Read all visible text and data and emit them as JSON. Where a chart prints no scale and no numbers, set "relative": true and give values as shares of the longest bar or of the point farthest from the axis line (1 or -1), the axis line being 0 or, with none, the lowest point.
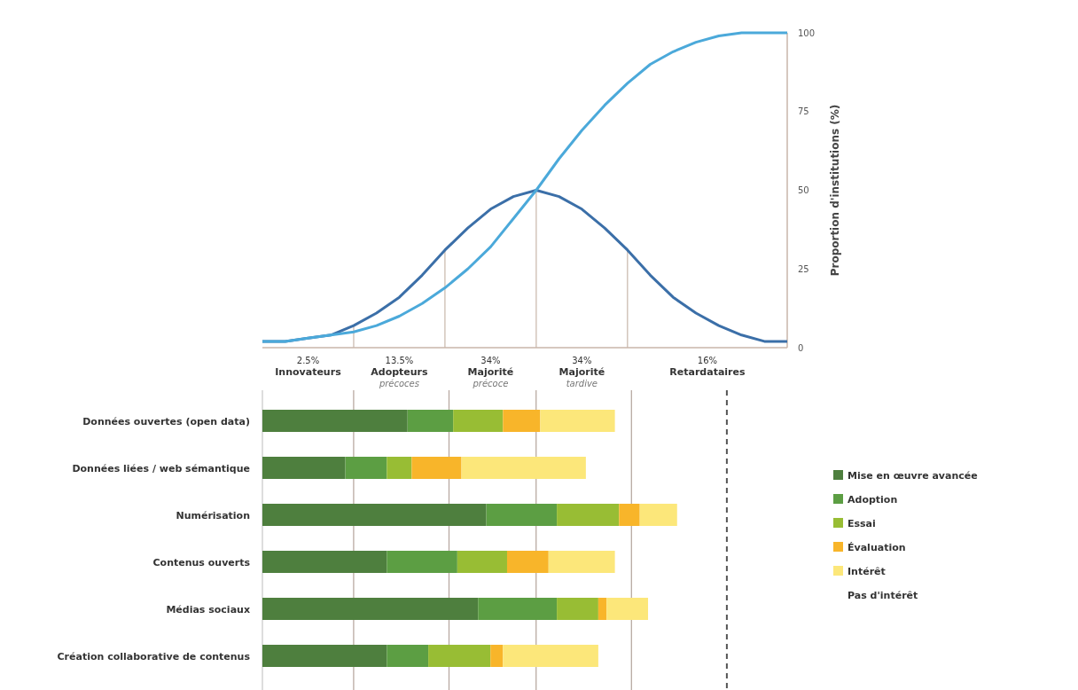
{
  "chart_data": [
    {
      "type": "line",
      "categories": [
        null,
        null,
        null,
        null,
        null,
        null,
        null,
        null,
        null,
        null,
        null,
        null,
        null,
        null,
        null,
        null,
        null,
        null,
        null,
        null,
        null,
        null,
        null,
        null
      ],
      "ylim": [
        0,
        100
      ],
      "yticks": [
        0,
        25,
        50,
        75,
        100
      ],
      "ylabel": "Proportion d'institutions (%)",
      "series": [
        {
          "color": "#3b6fa8",
          "values": [
            2,
            2,
            3,
            4,
            7,
            11,
            16,
            23,
            31,
            38,
            44,
            48,
            50,
            48,
            44,
            38,
            31,
            23,
            16,
            11,
            7,
            4,
            2,
            2
          ]
        },
        {
          "color": "#4ba9da",
          "values": [
            2,
            2,
            3,
            4,
            5,
            7,
            10,
            14,
            19,
            25,
            32,
            41,
            50,
            60,
            69,
            77,
            84,
            90,
            94,
            97,
            99,
            100,
            100,
            100
          ]
        }
      ],
      "annotations": [
        "2.5%\nInnovateurs",
        "13.5%\nAdopteurs\nprécoces",
        "34%\nMajorité\nprécoce",
        "34%\nMajorité\ntardive",
        "16%\nRetardataires"
      ],
      "grid": false
    },
    {
      "type": "bar",
      "orientation": "horizontal",
      "stacked": true,
      "relative": true,
      "legend": "right",
      "categories": [
        "Données ouvertes (open data)",
        "Données liées / web sémantique",
        "Numérisation",
        "Contenus ouverts",
        "Médias sociaux",
        "Création collaborative de contenus"
      ],
      "series": [
        {
          "name": "Mise en œuvre avancée",
          "color": "#4e7f3e",
          "values": [
            0.35,
            0.2,
            0.54,
            0.3,
            0.52,
            0.3
          ]
        },
        {
          "name": "Adoption",
          "color": "#5c9e43",
          "values": [
            0.11,
            0.1,
            0.17,
            0.17,
            0.19,
            0.1
          ]
        },
        {
          "name": "Essai",
          "color": "#98bd34",
          "values": [
            0.12,
            0.06,
            0.15,
            0.12,
            0.1,
            0.15
          ]
        },
        {
          "name": "Évaluation",
          "color": "#f8b52a",
          "values": [
            0.09,
            0.12,
            0.05,
            0.1,
            0.02,
            0.03
          ]
        },
        {
          "name": "Intérêt",
          "color": "#fce77a",
          "values": [
            0.18,
            0.3,
            0.09,
            0.16,
            0.1,
            0.23
          ]
        }
      ],
      "ref_lines": [
        {
          "axis": "x",
          "value": 0.22,
          "color": "#b8aaa2"
        },
        {
          "axis": "x",
          "value": 0.45,
          "color": "#b8aaa2"
        },
        {
          "axis": "x",
          "value": 0.66,
          "color": "#b8aaa2"
        },
        {
          "axis": "x",
          "value": 0.89,
          "color": "#b8aaa2"
        },
        {
          "axis": "x",
          "value": 1.12,
          "color": "#555555",
          "line_style": "dashed"
        }
      ],
      "annotations": [
        "Pas d'intérêt"
      ]
    }
  ]
}
